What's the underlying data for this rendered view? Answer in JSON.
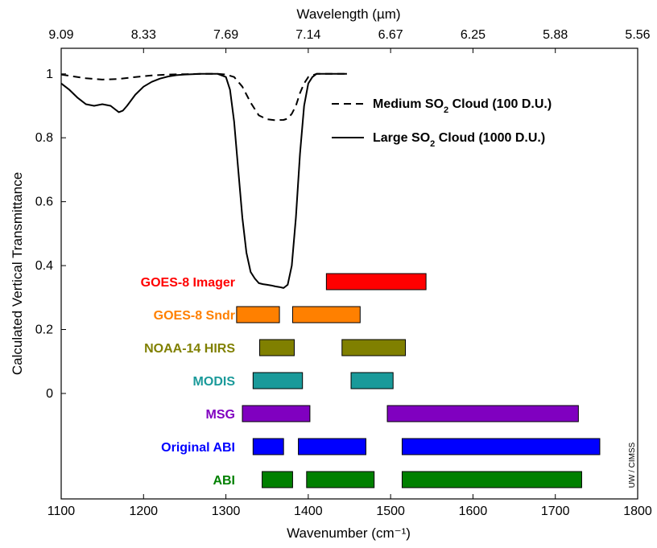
{
  "chart_data": {
    "type": "line",
    "top_axis_label": "Wavelength (µm)",
    "top_axis_ticks": [
      "9.09",
      "8.33",
      "7.69",
      "7.14",
      "6.67",
      "6.25",
      "5.88",
      "5.56"
    ],
    "xlabel": "Wavenumber (cm⁻¹)",
    "ylabel": "Calculated Vertical Transmittance",
    "xlim": [
      1100,
      1800
    ],
    "x_ticks": [
      "1100",
      "1200",
      "1300",
      "1400",
      "1500",
      "1600",
      "1700",
      "1800"
    ],
    "y_ticks": [
      {
        "label": "1",
        "v": 1.0
      },
      {
        "label": "0.8",
        "v": 0.8
      },
      {
        "label": "0.6",
        "v": 0.6
      },
      {
        "label": "0.4",
        "v": 0.4
      },
      {
        "label": "0.2",
        "v": 0.2
      },
      {
        "label": "0",
        "v": 0.0
      }
    ],
    "y_axis_min": -0.33,
    "y_axis_max": 1.08,
    "series": [
      {
        "name": "Medium SO2 Cloud (100 D.U.)",
        "style": "dashed",
        "x": [
          1100,
          1115,
          1130,
          1150,
          1170,
          1190,
          1210,
          1230,
          1250,
          1270,
          1290,
          1300,
          1310,
          1320,
          1330,
          1340,
          1350,
          1360,
          1370,
          1375,
          1380,
          1385,
          1390,
          1395,
          1400,
          1410,
          1420,
          1430,
          1447
        ],
        "y": [
          0.998,
          0.992,
          0.986,
          0.982,
          0.984,
          0.99,
          0.995,
          0.998,
          0.999,
          1.0,
          1.0,
          0.998,
          0.99,
          0.96,
          0.91,
          0.87,
          0.858,
          0.855,
          0.856,
          0.86,
          0.875,
          0.9,
          0.94,
          0.97,
          0.99,
          1.0,
          1.0,
          1.0,
          1.0
        ]
      },
      {
        "name": "Large SO2 Cloud (1000 D.U.)",
        "style": "solid",
        "x": [
          1100,
          1110,
          1120,
          1130,
          1140,
          1150,
          1160,
          1165,
          1170,
          1175,
          1180,
          1190,
          1200,
          1210,
          1220,
          1230,
          1240,
          1250,
          1270,
          1290,
          1300,
          1305,
          1310,
          1315,
          1320,
          1325,
          1330,
          1335,
          1340,
          1345,
          1350,
          1355,
          1360,
          1365,
          1370,
          1375,
          1380,
          1385,
          1390,
          1395,
          1400,
          1405,
          1410,
          1420,
          1447
        ],
        "y": [
          0.97,
          0.95,
          0.925,
          0.905,
          0.9,
          0.905,
          0.9,
          0.89,
          0.88,
          0.885,
          0.9,
          0.935,
          0.96,
          0.975,
          0.985,
          0.992,
          0.996,
          0.998,
          1.0,
          1.0,
          0.99,
          0.95,
          0.85,
          0.7,
          0.55,
          0.44,
          0.38,
          0.36,
          0.345,
          0.342,
          0.34,
          0.338,
          0.335,
          0.333,
          0.33,
          0.34,
          0.4,
          0.55,
          0.75,
          0.9,
          0.97,
          0.99,
          1.0,
          1.0,
          1.0
        ]
      }
    ],
    "legend": {
      "placement": "upper-right",
      "entries": [
        {
          "style": "dashed",
          "text": "Medium SO",
          "sub": "2",
          "rest": " Cloud (100 D.U.)"
        },
        {
          "style": "solid",
          "text": "Large SO",
          "sub": "2",
          "rest": " Cloud (1000 D.U.)"
        }
      ]
    },
    "instruments": [
      {
        "name": "GOES-8 Imager",
        "color": "#ff0000",
        "bands": [
          [
            1422,
            1543
          ]
        ]
      },
      {
        "name": "GOES-8 Sndr",
        "color": "#ff8000",
        "bands": [
          [
            1313,
            1365
          ],
          [
            1381,
            1463
          ]
        ]
      },
      {
        "name": "NOAA-14 HIRS",
        "color": "#808000",
        "bands": [
          [
            1341,
            1383
          ],
          [
            1441,
            1518
          ]
        ]
      },
      {
        "name": "MODIS",
        "color": "#1a9a9a",
        "bands": [
          [
            1333,
            1393
          ],
          [
            1452,
            1503
          ]
        ]
      },
      {
        "name": "MSG",
        "color": "#8000c0",
        "bands": [
          [
            1320,
            1402
          ],
          [
            1496,
            1728
          ]
        ]
      },
      {
        "name": "Original ABI",
        "color": "#0000ff",
        "bands": [
          [
            1333,
            1370
          ],
          [
            1388,
            1470
          ],
          [
            1514,
            1754
          ]
        ]
      },
      {
        "name": "ABI",
        "color": "#008000",
        "bands": [
          [
            1344,
            1381
          ],
          [
            1398,
            1480
          ],
          [
            1514,
            1732
          ]
        ]
      }
    ],
    "credit": "UW / CIMSS"
  }
}
